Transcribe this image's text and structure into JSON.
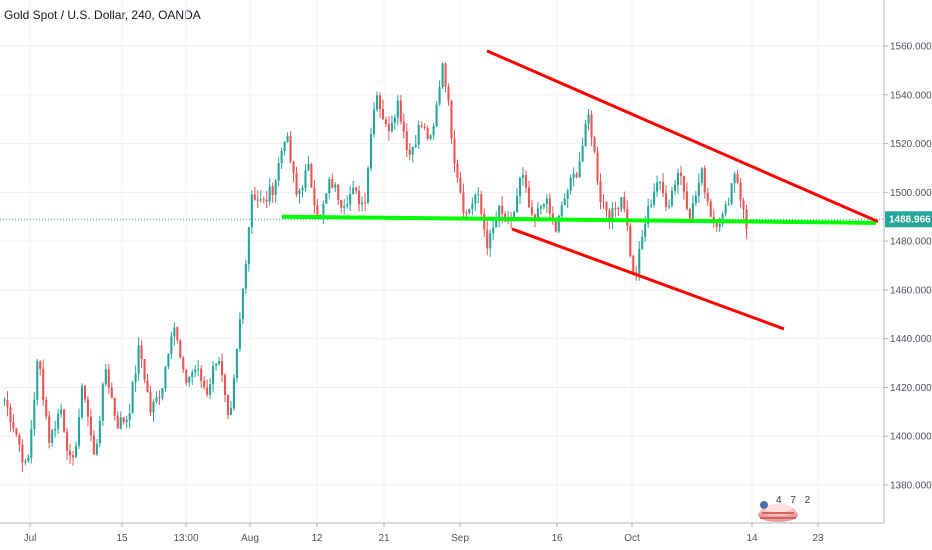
{
  "header": {
    "title": "Gold Spot / U.S. Dollar, 240, OANDA"
  },
  "chart_data": {
    "type": "candlestick",
    "title": "Gold Spot / U.S. Dollar, 240, OANDA",
    "y_ticks": [
      1380,
      1400,
      1420,
      1440,
      1460,
      1480,
      1500,
      1520,
      1540,
      1560
    ],
    "y_tick_labels": [
      "1380.000",
      "1400.000",
      "1420.000",
      "1440.000",
      "1460.000",
      "1480.000",
      "1500.000",
      "1520.000",
      "1540.000",
      "1560.000"
    ],
    "ylim": [
      1363,
      1573
    ],
    "x_labels": [
      "Jul",
      "15",
      "13:00",
      "Aug",
      "12",
      "21",
      "Sep",
      "16",
      "Oct",
      "14",
      "23"
    ],
    "last_price": 1488.966,
    "last_price_label": "1488.966",
    "colors": {
      "up": "#26a69a",
      "down": "#ef5350",
      "channel": "#ff0000",
      "support": "#00ff00",
      "price_line": "#26a69a"
    },
    "path": [
      1415,
      1402,
      1385,
      1433,
      1398,
      1412,
      1385,
      1422,
      1390,
      1428,
      1405,
      1408,
      1437,
      1410,
      1420,
      1448,
      1422,
      1428,
      1418,
      1435,
      1402,
      1450,
      1500,
      1495,
      1503,
      1525,
      1498,
      1510,
      1488,
      1505,
      1496,
      1500,
      1495,
      1543,
      1525,
      1537,
      1515,
      1528,
      1520,
      1555,
      1515,
      1490,
      1500,
      1478,
      1492,
      1485,
      1508,
      1486,
      1498,
      1484,
      1500,
      1510,
      1532,
      1498,
      1490,
      1500,
      1463,
      1488,
      1505,
      1495,
      1510,
      1490,
      1508,
      1488,
      1490,
      1510,
      1485
    ],
    "support_line": {
      "from": {
        "bar": 0.1,
        "price": 1490
      },
      "to": {
        "bar": 1.0,
        "price": 1487.5
      }
    },
    "channel_upper": {
      "from": {
        "date": "Sep 3",
        "price": 1558
      },
      "to": {
        "date": "Oct 24",
        "price": 1488
      }
    },
    "channel_lower": {
      "from": {
        "date": "Sep 10",
        "price": 1485
      },
      "to": {
        "date": "Oct 20",
        "price": 1444
      }
    }
  },
  "watermark": {
    "text": "4 7 2"
  }
}
